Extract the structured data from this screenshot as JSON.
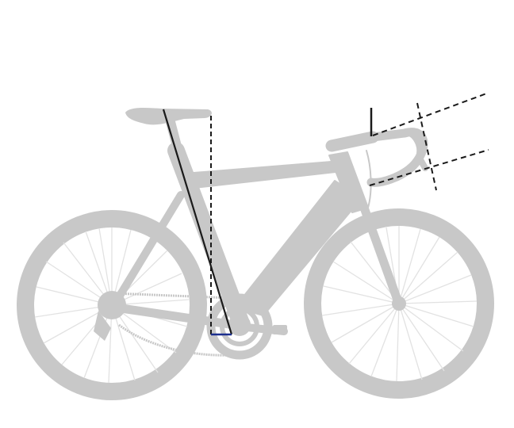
{
  "figure": {
    "subject": "road-bicycle-silhouette",
    "colors": {
      "background": "#ffffff",
      "silhouette": "#c8c8c8",
      "spokes": "#e2e2e2",
      "measure_line": "#1a1a1a",
      "measure_base": "#1c2f8f"
    },
    "labels": []
  }
}
